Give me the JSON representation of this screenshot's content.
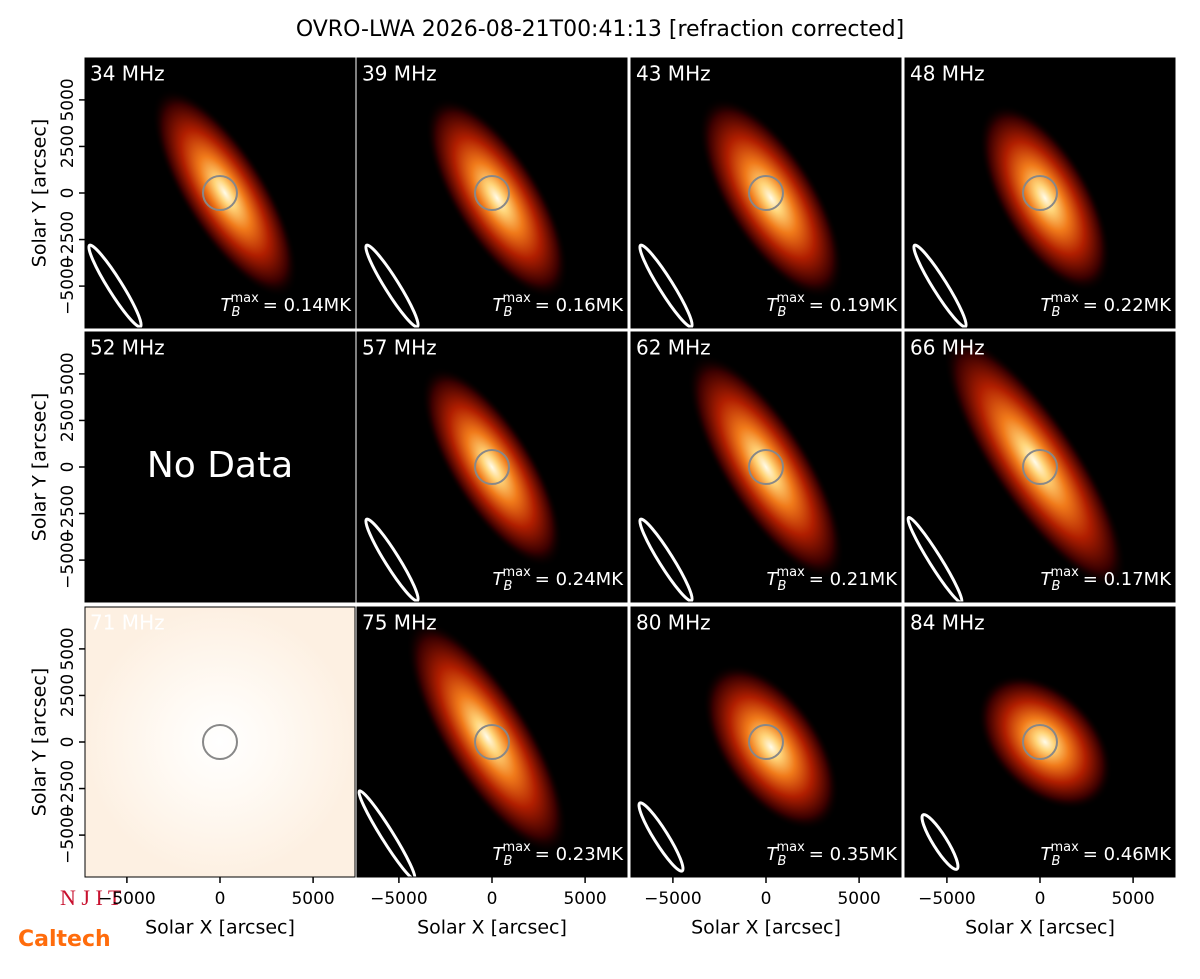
{
  "chart_data": {
    "type": "image-grid",
    "title": "OVRO-LWA 2026-08-21T00:41:13 [refraction corrected]",
    "x_label": "Solar X [arcsec]",
    "y_label": "Solar Y [arcsec]",
    "xlim": [
      -7250,
      7250
    ],
    "ylim": [
      -7250,
      7250
    ],
    "xticks": [
      {
        "value": -5000,
        "label": "−5000"
      },
      0,
      5000
    ],
    "yticks": [
      {
        "value": -5000,
        "label": "−5000"
      },
      {
        "value": -2500,
        "label": "−2500"
      },
      0,
      2500,
      5000
    ],
    "tmax_symbol": "T",
    "tmax_sub": "B",
    "tmax_sup": "max",
    "panels": [
      {
        "label": "34 MHz",
        "tmax": "= 0.14MK"
      },
      {
        "label": "39 MHz",
        "tmax": "= 0.16MK"
      },
      {
        "label": "43 MHz",
        "tmax": "= 0.19MK"
      },
      {
        "label": "48 MHz",
        "tmax": "= 0.22MK"
      },
      {
        "label": "52 MHz",
        "text": "No Data"
      },
      {
        "label": "57 MHz",
        "tmax": "= 0.24MK"
      },
      {
        "label": "62 MHz",
        "tmax": "= 0.21MK"
      },
      {
        "label": "66 MHz",
        "tmax": "= 0.17MK"
      },
      {
        "label": "71 MHz"
      },
      {
        "label": "75 MHz",
        "tmax": "= 0.23MK"
      },
      {
        "label": "80 MHz",
        "tmax": "= 0.35MK"
      },
      {
        "label": "84 MHz",
        "tmax": "= 0.46MK"
      }
    ],
    "logos": {
      "njit": "N J I T",
      "caltech": "Caltech"
    }
  }
}
